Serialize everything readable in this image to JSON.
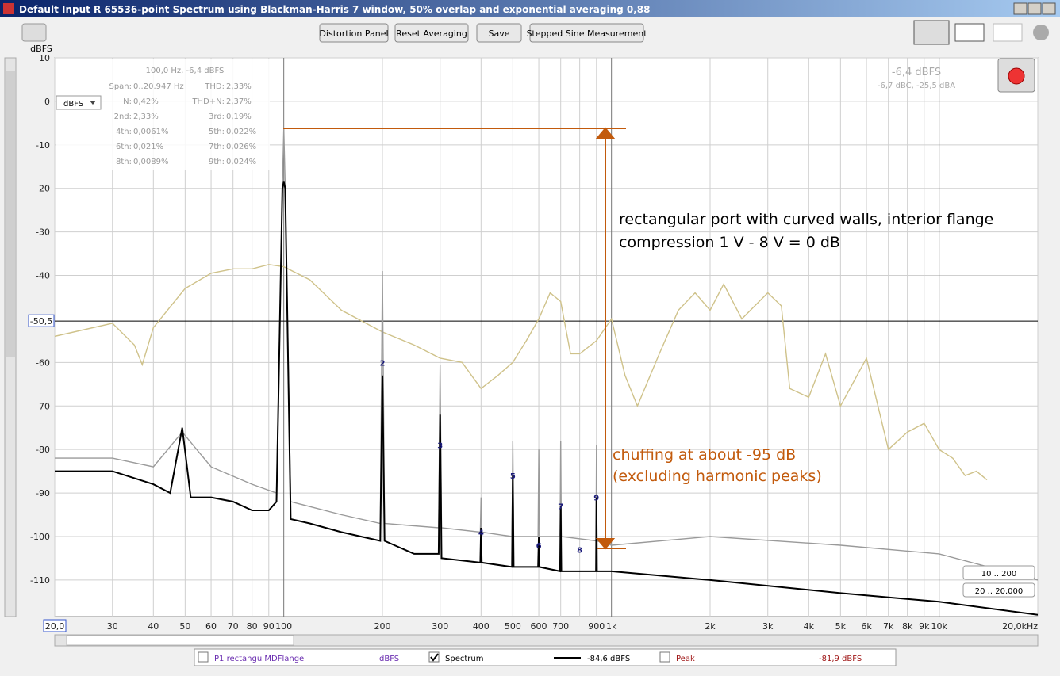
{
  "window": {
    "title": "Default Input R 65536-point Spectrum using Blackman-Harris 7 window, 50% overlap and exponential averaging 0,88"
  },
  "toolbar": {
    "buttons": [
      "Distortion Panel",
      "Reset Averaging",
      "Save",
      "Stepped Sine Measurement"
    ]
  },
  "panel": {
    "header": "100,0 Hz, -6,4 dBFS",
    "unit_select": "dBFS",
    "rows": [
      [
        "Span:",
        "0..20.947 Hz",
        "THD:",
        "2,33%"
      ],
      [
        "N:",
        "0,42%",
        "THD+N:",
        "2,37%"
      ],
      [
        "2nd:",
        "2,33%",
        "3rd:",
        "0,19%"
      ],
      [
        "4th:",
        "0,0061%",
        "5th:",
        "0,022%"
      ],
      [
        "6th:",
        "0,021%",
        "7th:",
        "0,026%"
      ],
      [
        "8th:",
        "0,0089%",
        "9th:",
        "0,024%"
      ]
    ],
    "level": "-6,4 dBFS",
    "weighted": "-6,7 dBC, -25,5 dBA"
  },
  "annotations": [
    "rectangular port with curved walls, interior flange",
    "compression 1 V - 8 V = 0 dB",
    "chuffing at about -95 dB",
    "(excluding harmonic peaks)"
  ],
  "ranges": [
    "10 .. 200",
    "20 .. 20.000"
  ],
  "chart_data": {
    "type": "line",
    "y_unit": "dBFS",
    "log_x": true,
    "grid": true,
    "xlim": [
      20,
      20000
    ],
    "ylim": [
      -118.4,
      10
    ],
    "yticks": [
      10,
      0,
      -10,
      -20,
      -30,
      -40,
      -50,
      -60,
      -70,
      -80,
      -90,
      -100,
      -110
    ],
    "xticks": [
      {
        "value": 20,
        "label": "20,0"
      },
      30,
      40,
      50,
      60,
      70,
      80,
      90,
      100,
      200,
      300,
      400,
      500,
      600,
      700,
      {
        "value": 800,
        "label": null
      },
      900,
      {
        "value": 1000,
        "label": "1k"
      },
      {
        "value": 2000,
        "label": "2k"
      },
      {
        "value": 3000,
        "label": "3k"
      },
      {
        "value": 4000,
        "label": "4k"
      },
      {
        "value": 5000,
        "label": "5k"
      },
      {
        "value": 6000,
        "label": "6k"
      },
      {
        "value": 7000,
        "label": "7k"
      },
      {
        "value": 8000,
        "label": "8k"
      },
      {
        "value": 9000,
        "label": "9k"
      },
      {
        "value": 10000,
        "label": "10k"
      },
      {
        "value": 20000,
        "label": "20,0kHz"
      }
    ],
    "marker": {
      "value": -50.5,
      "label": "-50,5"
    },
    "series": [
      {
        "name": "P1 rectangu MDFlange",
        "color": "#cfc28a",
        "unit": "dBFS",
        "x": [
          20,
          30,
          35,
          37,
          40,
          50,
          60,
          70,
          80,
          90,
          100,
          120,
          150,
          200,
          250,
          300,
          350,
          400,
          450,
          500,
          550,
          600,
          650,
          700,
          750,
          800,
          900,
          1000,
          1100,
          1200,
          1400,
          1600,
          1800,
          2000,
          2200,
          2500,
          3000,
          3300,
          3500,
          4000,
          4500,
          5000,
          6000,
          7000,
          8000,
          9000,
          10000,
          11000,
          12000,
          13000,
          14000
        ],
        "values": [
          -54,
          -51,
          -56,
          -60.5,
          -52,
          -43,
          -39.5,
          -38.5,
          -38.5,
          -37.5,
          -38,
          -41,
          -48,
          -53,
          -56,
          -59,
          -60,
          -66,
          -63,
          -60,
          -55,
          -50,
          -44,
          -46,
          -58,
          -58,
          -55,
          -50,
          -63,
          -70,
          -58,
          -48,
          -44,
          -48,
          -42,
          -50,
          -44,
          -47,
          -66,
          -68,
          -58,
          -70,
          -59,
          -80,
          -76,
          -74,
          -80,
          -82,
          -86,
          -85,
          -87
        ]
      },
      {
        "name": "Peak",
        "color": "#9a9a9a",
        "unit": "dBFS",
        "readout": "-81,9 dBFS",
        "x": [
          20,
          30,
          40,
          49,
          60,
          80,
          95,
          99,
          100,
          101,
          105,
          150,
          197,
          200,
          203,
          297,
          300,
          303,
          398,
          400,
          402,
          497,
          500,
          503,
          597,
          600,
          603,
          697,
          700,
          703,
          897,
          900,
          903,
          1000,
          2000,
          5000,
          10000,
          20000
        ],
        "values": [
          -82,
          -82,
          -84,
          -76,
          -84,
          -88,
          -90,
          -20,
          -6.4,
          -20,
          -92,
          -95,
          -97,
          -39,
          -97,
          -98,
          -60.5,
          -98,
          -99,
          -91,
          -99,
          -100,
          -78,
          -100,
          -100,
          -80,
          -100,
          -100,
          -78,
          -100,
          -101,
          -79,
          -101,
          -102,
          -100,
          -102,
          -104,
          -110
        ]
      },
      {
        "name": "Spectrum",
        "color": "#000000",
        "unit": "dBFS",
        "readout": "-84,6 dBFS",
        "x": [
          20,
          30,
          40,
          45,
          49,
          52,
          60,
          70,
          80,
          90,
          95,
          99,
          100,
          101,
          105,
          120,
          150,
          197,
          200,
          203,
          250,
          297,
          300,
          303,
          398,
          400,
          402,
          497,
          500,
          503,
          597,
          600,
          603,
          697,
          700,
          703,
          897,
          900,
          903,
          1000,
          2000,
          5000,
          10000,
          20000
        ],
        "values": [
          -85,
          -85,
          -88,
          -90,
          -75,
          -91,
          -91,
          -92,
          -94,
          -94,
          -92,
          -20,
          -18.5,
          -20,
          -96,
          -97,
          -99,
          -101,
          -63,
          -101,
          -104,
          -104,
          -72,
          -105,
          -106,
          -98,
          -106,
          -107,
          -86,
          -107,
          -107,
          -100,
          -107,
          -108,
          -93,
          -108,
          -108,
          -91,
          -108,
          -108,
          -110,
          -113,
          -115,
          -118
        ]
      }
    ],
    "harmonic_labels": [
      {
        "label": "2",
        "x": 200,
        "y": -60
      },
      {
        "label": "3",
        "x": 300,
        "y": -79
      },
      {
        "label": "4",
        "x": 400,
        "y": -99
      },
      {
        "label": "5",
        "x": 500,
        "y": -86
      },
      {
        "label": "6",
        "x": 600,
        "y": -102
      },
      {
        "label": "7",
        "x": 700,
        "y": -93
      },
      {
        "label": "8",
        "x": 800,
        "y": -103
      },
      {
        "label": "9",
        "x": 900,
        "y": -91
      }
    ]
  }
}
